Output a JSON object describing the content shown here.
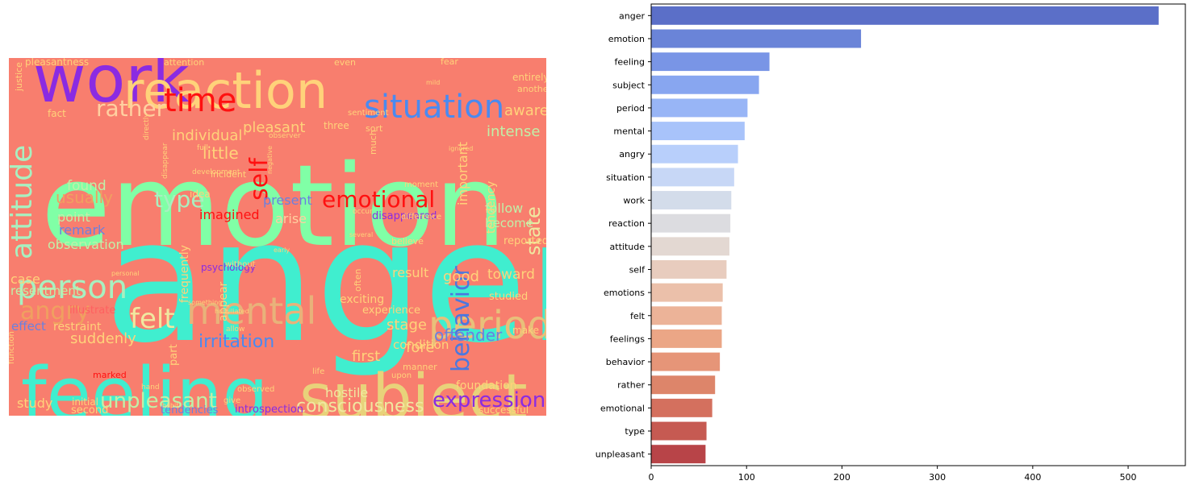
{
  "wordcloud": {
    "background": "#f87e6e",
    "words": [
      {
        "text": "anger",
        "color": "#40eecf",
        "size": 210
      },
      {
        "text": "emotion",
        "color": "#80ffa6",
        "size": 140
      },
      {
        "text": "work",
        "color": "#8a2be2",
        "size": 80
      },
      {
        "text": "reaction",
        "color": "#ffd27a",
        "size": 62
      },
      {
        "text": "feeling",
        "color": "#40eecf",
        "size": 90
      },
      {
        "text": "subject",
        "color": "#e8d27a",
        "size": 78
      },
      {
        "text": "situation",
        "color": "#4a8af0",
        "size": 40
      },
      {
        "text": "period",
        "color": "#e8c07a",
        "size": 48
      },
      {
        "text": "mental",
        "color": "#e8b27a",
        "size": 46
      },
      {
        "text": "person",
        "color": "#a8f0c0",
        "size": 40
      },
      {
        "text": "attitude",
        "color": "#a8f0c0",
        "size": 36
      },
      {
        "text": "time",
        "color": "#ff1010",
        "size": 40
      },
      {
        "text": "rather",
        "color": "#ffd0a0",
        "size": 28
      },
      {
        "text": "behavior",
        "color": "#4a78e0",
        "size": 30
      },
      {
        "text": "emotional",
        "color": "#ff1010",
        "size": 28
      },
      {
        "text": "self",
        "color": "#ff1010",
        "size": 30
      },
      {
        "text": "type",
        "color": "#a8f0c0",
        "size": 28
      },
      {
        "text": "felt",
        "color": "#f0e8a0",
        "size": 34
      },
      {
        "text": "angry",
        "color": "#f0a060",
        "size": 30
      },
      {
        "text": "unpleasant",
        "color": "#c0f0a8",
        "size": 26
      },
      {
        "text": "expression",
        "color": "#8a2be2",
        "size": 26
      },
      {
        "text": "consciousness",
        "color": "#f0e8a0",
        "size": 22
      },
      {
        "text": "irritation",
        "color": "#4a8af0",
        "size": 22
      },
      {
        "text": "state",
        "color": "#f0e8a0",
        "size": 24
      },
      {
        "text": "usually",
        "color": "#f0a060",
        "size": 20
      },
      {
        "text": "offender",
        "color": "#6a80e0",
        "size": 20
      },
      {
        "text": "observation",
        "color": "#c0f0a8",
        "size": 16
      },
      {
        "text": "intense",
        "color": "#c0f0a8",
        "size": 18
      },
      {
        "text": "aware",
        "color": "#ffd27a",
        "size": 18
      },
      {
        "text": "individual",
        "color": "#ffd27a",
        "size": 18
      },
      {
        "text": "little",
        "color": "#ffd27a",
        "size": 20
      },
      {
        "text": "pleasant",
        "color": "#ffd27a",
        "size": 18
      },
      {
        "text": "found",
        "color": "#c0f0a8",
        "size": 17
      },
      {
        "text": "imagined",
        "color": "#ff1010",
        "size": 16
      },
      {
        "text": "present",
        "color": "#6a80e0",
        "size": 16
      },
      {
        "text": "arise",
        "color": "#ffd0a0",
        "size": 16
      },
      {
        "text": "remark",
        "color": "#6a80e0",
        "size": 16
      },
      {
        "text": "point",
        "color": "#c0f0a8",
        "size": 16
      },
      {
        "text": "case",
        "color": "#ffd27a",
        "size": 16
      },
      {
        "text": "resentment",
        "color": "#c0f0a8",
        "size": 15
      },
      {
        "text": "suddenly",
        "color": "#ffd27a",
        "size": 18
      },
      {
        "text": "study",
        "color": "#ffd27a",
        "size": 16
      },
      {
        "text": "effect",
        "color": "#6a80e0",
        "size": 15
      },
      {
        "text": "restraint",
        "color": "#ffd27a",
        "size": 14
      },
      {
        "text": "illustrate",
        "color": "#ff6060",
        "size": 13
      },
      {
        "text": "hostile",
        "color": "#f0e8a0",
        "size": 16
      },
      {
        "text": "foundation",
        "color": "#ffd27a",
        "size": 14
      },
      {
        "text": "introspection",
        "color": "#8a2be2",
        "size": 13
      },
      {
        "text": "tendencies",
        "color": "#6a80e0",
        "size": 13
      },
      {
        "text": "second",
        "color": "#ffd27a",
        "size": 13
      },
      {
        "text": "successful",
        "color": "#ffd27a",
        "size": 12
      },
      {
        "text": "condition",
        "color": "#ffd27a",
        "size": 15
      },
      {
        "text": "first",
        "color": "#ffd27a",
        "size": 18
      },
      {
        "text": "fore",
        "color": "#ffd27a",
        "size": 18
      },
      {
        "text": "stage",
        "color": "#ffd27a",
        "size": 18
      },
      {
        "text": "good",
        "color": "#ffd27a",
        "size": 18
      },
      {
        "text": "toward",
        "color": "#ffd27a",
        "size": 17
      },
      {
        "text": "follow",
        "color": "#c0f0a8",
        "size": 16
      },
      {
        "text": "result",
        "color": "#ffd27a",
        "size": 16
      },
      {
        "text": "become",
        "color": "#c0f0a8",
        "size": 15
      },
      {
        "text": "tendency",
        "color": "#ffd27a",
        "size": 14
      },
      {
        "text": "important",
        "color": "#ffd27a",
        "size": 16
      },
      {
        "text": "reported",
        "color": "#ffd27a",
        "size": 13
      },
      {
        "text": "experience",
        "color": "#ffd27a",
        "size": 13
      },
      {
        "text": "exciting",
        "color": "#ffd27a",
        "size": 14
      },
      {
        "text": "studied",
        "color": "#ffd27a",
        "size": 13
      },
      {
        "text": "disappeared",
        "color": "#8a2be2",
        "size": 13
      },
      {
        "text": "make",
        "color": "#ffd27a",
        "size": 12
      },
      {
        "text": "frequently",
        "color": "#ffd27a",
        "size": 14
      },
      {
        "text": "appear",
        "color": "#ffd27a",
        "size": 14
      },
      {
        "text": "part",
        "color": "#ffd27a",
        "size": 13
      },
      {
        "text": "psychology",
        "color": "#8a2be2",
        "size": 12
      },
      {
        "text": "marked",
        "color": "#ff1010",
        "size": 11
      },
      {
        "text": "initial",
        "color": "#ffd27a",
        "size": 12
      },
      {
        "text": "even",
        "color": "#ffd27a",
        "size": 11
      },
      {
        "text": "fear",
        "color": "#ffd27a",
        "size": 11
      },
      {
        "text": "attention",
        "color": "#ffd27a",
        "size": 11
      },
      {
        "text": "pleasantness",
        "color": "#ffd27a",
        "size": 12
      },
      {
        "text": "entirely",
        "color": "#ffd27a",
        "size": 12
      },
      {
        "text": "another",
        "color": "#ffd27a",
        "size": 11
      },
      {
        "text": "justice",
        "color": "#ffd27a",
        "size": 11
      },
      {
        "text": "fact",
        "color": "#ffd27a",
        "size": 12
      },
      {
        "text": "sort",
        "color": "#ffd27a",
        "size": 11
      },
      {
        "text": "idea",
        "color": "#ffd27a",
        "size": 12
      },
      {
        "text": "incident",
        "color": "#ffd27a",
        "size": 11
      },
      {
        "text": "three",
        "color": "#ffd27a",
        "size": 12
      },
      {
        "text": "believe",
        "color": "#ffd27a",
        "size": 11
      },
      {
        "text": "often",
        "color": "#ffd27a",
        "size": 11
      },
      {
        "text": "moment",
        "color": "#ffd27a",
        "size": 10
      },
      {
        "text": "much",
        "color": "#ffd27a",
        "size": 11
      },
      {
        "text": "without",
        "color": "#ffd27a",
        "size": 10
      },
      {
        "text": "life",
        "color": "#ffd27a",
        "size": 10
      },
      {
        "text": "manner",
        "color": "#ffd27a",
        "size": 11
      },
      {
        "text": "upon",
        "color": "#ffd27a",
        "size": 10
      },
      {
        "text": "give",
        "color": "#ffd27a",
        "size": 10
      },
      {
        "text": "function",
        "color": "#ffd27a",
        "size": 10
      },
      {
        "text": "difference",
        "color": "#ffd27a",
        "size": 10
      },
      {
        "text": "sentiment",
        "color": "#ffd27a",
        "size": 10
      },
      {
        "text": "observed",
        "color": "#ffd27a",
        "size": 10
      },
      {
        "text": "hand",
        "color": "#ffd27a",
        "size": 9
      },
      {
        "text": "full",
        "color": "#ffd27a",
        "size": 9
      },
      {
        "text": "directly",
        "color": "#ffd27a",
        "size": 9
      },
      {
        "text": "disappear",
        "color": "#ffd27a",
        "size": 9
      },
      {
        "text": "development",
        "color": "#ffd27a",
        "size": 9
      },
      {
        "text": "observer",
        "color": "#ffd27a",
        "size": 9
      },
      {
        "text": "negative",
        "color": "#ffd27a",
        "size": 8
      },
      {
        "text": "occur",
        "color": "#ffd27a",
        "size": 9
      },
      {
        "text": "several",
        "color": "#ffd27a",
        "size": 8
      },
      {
        "text": "early",
        "color": "#ffd27a",
        "size": 8
      },
      {
        "text": "mild",
        "color": "#ffd27a",
        "size": 8
      },
      {
        "text": "habit",
        "color": "#ffd27a",
        "size": 8
      },
      {
        "text": "allow",
        "color": "#ffd27a",
        "size": 9
      },
      {
        "text": "humiliated",
        "color": "#ffd27a",
        "size": 8
      },
      {
        "text": "something",
        "color": "#ffd27a",
        "size": 8
      },
      {
        "text": "personal",
        "color": "#ffd27a",
        "size": 8
      },
      {
        "text": "ignored",
        "color": "#ffd27a",
        "size": 8
      }
    ]
  },
  "chart_data": {
    "type": "bar",
    "orientation": "horizontal",
    "categories": [
      "anger",
      "emotion",
      "feeling",
      "subject",
      "period",
      "mental",
      "angry",
      "situation",
      "work",
      "reaction",
      "attitude",
      "self",
      "emotions",
      "felt",
      "feelings",
      "behavior",
      "rather",
      "emotional",
      "type",
      "unpleasant"
    ],
    "values": [
      532,
      220,
      124,
      113,
      101,
      98,
      91,
      87,
      84,
      83,
      82,
      79,
      75,
      74,
      74,
      72,
      67,
      64,
      58,
      57
    ],
    "colors": [
      "#5b6fc8",
      "#6a84d8",
      "#7995e6",
      "#88a6f0",
      "#98b5f6",
      "#a8c3fa",
      "#b8cffb",
      "#c7d7f6",
      "#d3dcea",
      "#dcdce0",
      "#e3d8d2",
      "#e8ccbe",
      "#ebc0aa",
      "#ecb398",
      "#eba686",
      "#e69578",
      "#dd856a",
      "#d4705e",
      "#c65a52",
      "#b84448"
    ],
    "xlim": [
      0,
      560
    ],
    "xticks": [
      0,
      100,
      200,
      300,
      400,
      500
    ],
    "xlabel": "",
    "ylabel": "",
    "grid": false
  }
}
